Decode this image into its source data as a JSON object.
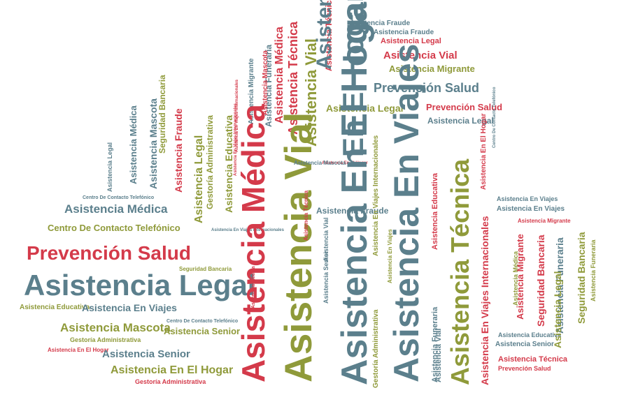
{
  "palette": {
    "red": "#d43a4a",
    "slate": "#5b7f8c",
    "olive": "#8f9a3a"
  },
  "words": [
    {
      "text": "Asistencia Fraude",
      "color": "slate"
    },
    {
      "text": "Asistencia Fraude",
      "color": "slate"
    },
    {
      "text": "Asistencia Legal",
      "color": "red"
    },
    {
      "text": "Asistencia Vial",
      "color": "red"
    },
    {
      "text": "Asistencia Migrante",
      "color": "olive"
    },
    {
      "text": "Asistencia Técnica",
      "color": "red"
    },
    {
      "text": "Prevención Salud",
      "color": "slate"
    },
    {
      "text": "Prevención Salud",
      "color": "red"
    },
    {
      "text": "Asistencia Legal",
      "color": "slate"
    },
    {
      "text": "Asistencia Vial",
      "color": "slate"
    },
    {
      "text": "Asistencia Legal",
      "color": "olive"
    },
    {
      "text": "Asistencia Médica",
      "color": "red"
    },
    {
      "text": "Asistencia Técnica",
      "color": "red"
    },
    {
      "text": "Asistencia Vial",
      "color": "olive"
    },
    {
      "text": "En El Hogar",
      "color": "slate"
    },
    {
      "text": "Asistencia Funeraria",
      "color": "slate"
    },
    {
      "text": "Asistencia Migrante",
      "color": "slate"
    },
    {
      "text": "Asistencia En Viajes Internacionales",
      "color": "red"
    },
    {
      "text": "Asistencia Mascota",
      "color": "red"
    },
    {
      "text": "Seguridad Bancaria",
      "color": "olive"
    },
    {
      "text": "Asistencia Mascota",
      "color": "slate"
    },
    {
      "text": "Asistencia Médica",
      "color": "slate"
    },
    {
      "text": "Asistencia Legal",
      "color": "slate"
    },
    {
      "text": "Asistencia Fraude",
      "color": "red"
    },
    {
      "text": "Gestoría Administrativa",
      "color": "olive"
    },
    {
      "text": "Asistencia Legal",
      "color": "olive"
    },
    {
      "text": "Asistencia Educativa",
      "color": "olive"
    },
    {
      "text": "Asistencia En Viajes Internacionales",
      "color": "red"
    },
    {
      "text": "Asistencia En El Hogar",
      "color": "red"
    },
    {
      "text": "Centro De Contacto Telefónico",
      "color": "slate"
    },
    {
      "text": "Asistencia Médica",
      "color": "slate"
    },
    {
      "text": "Centro De Contacto Telefónico",
      "color": "olive"
    },
    {
      "text": "Asistencia En Viajes Internacionales",
      "color": "slate"
    },
    {
      "text": "Prevención Salud",
      "color": "red"
    },
    {
      "text": "Seguridad Bancaria",
      "color": "olive"
    },
    {
      "text": "Asistencia Legal",
      "color": "slate"
    },
    {
      "text": "Asistencia Educativa",
      "color": "olive"
    },
    {
      "text": "Asistencia En Viajes",
      "color": "slate"
    },
    {
      "text": "Centro De Contacto Telefónico",
      "color": "slate"
    },
    {
      "text": "Asistencia Mascota",
      "color": "olive"
    },
    {
      "text": "Asistencia Senior",
      "color": "olive"
    },
    {
      "text": "Gestoría Administrativa",
      "color": "olive"
    },
    {
      "text": "Asistencia En El Hogar",
      "color": "red"
    },
    {
      "text": "Asistencia Senior",
      "color": "slate"
    },
    {
      "text": "Asistencia En El Hogar",
      "color": "olive"
    },
    {
      "text": "Gestoría Administrativa",
      "color": "red"
    },
    {
      "text": "Asistencia Médica",
      "color": "red"
    },
    {
      "text": "Asistencia Vial",
      "color": "olive"
    },
    {
      "text": "Asistencia Técnica",
      "color": "red"
    },
    {
      "text": "Asistencia Vial",
      "color": "slate"
    },
    {
      "text": "Asistencia Senior",
      "color": "slate"
    },
    {
      "text": "Asistencia En El Hogar",
      "color": "slate"
    },
    {
      "text": "Asistencia Fraude",
      "color": "slate"
    },
    {
      "text": "Asistencia En Viajes Internacionales",
      "color": "olive"
    },
    {
      "text": "Gestoría Administrativa",
      "color": "olive"
    },
    {
      "text": "Asistencia En Viajes",
      "color": "olive"
    },
    {
      "text": "Asistencia En Viajes",
      "color": "slate"
    },
    {
      "text": "Asistencia Funeraria",
      "color": "slate"
    },
    {
      "text": "Asistencia Vial",
      "color": "slate"
    },
    {
      "text": "Asistencia Educativa",
      "color": "red"
    },
    {
      "text": "Asistencia Técnica",
      "color": "olive"
    },
    {
      "text": "Asistencia Médica",
      "color": "red"
    },
    {
      "text": "Asistencia En Viajes Internacionales",
      "color": "red"
    },
    {
      "text": "Asistencia En El Hogar",
      "color": "red"
    },
    {
      "text": "Centro De Contacto Telefónico",
      "color": "slate"
    },
    {
      "text": "Asistencia En Viajes",
      "color": "slate"
    },
    {
      "text": "Asistencia En Viajes",
      "color": "slate"
    },
    {
      "text": "Asistencia Migrante",
      "color": "red"
    },
    {
      "text": "Asistencia Migrante",
      "color": "red"
    },
    {
      "text": "Asistencia Médica",
      "color": "olive"
    },
    {
      "text": "Seguridad Bancaria",
      "color": "red"
    },
    {
      "text": "Asistencia Funeraria",
      "color": "slate"
    },
    {
      "text": "Seguridad Bancaria",
      "color": "olive"
    },
    {
      "text": "Asistencia Funeraria",
      "color": "olive"
    },
    {
      "text": "Asistencia Educativa",
      "color": "slate"
    },
    {
      "text": "Asistencia Senior",
      "color": "slate"
    },
    {
      "text": "Asistencia Técnica",
      "color": "red"
    },
    {
      "text": "Prevención Salud",
      "color": "red"
    },
    {
      "text": "Asistencia Legal",
      "color": "olive"
    },
    {
      "text": "Asistencia Mascota",
      "color": "slate"
    }
  ]
}
